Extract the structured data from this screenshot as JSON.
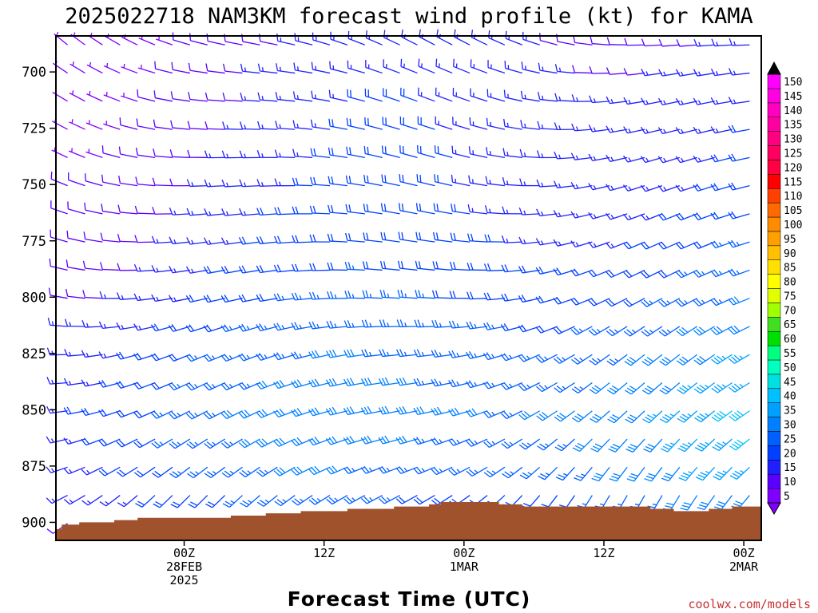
{
  "chart_data": {
    "type": "wind-profile",
    "title": "2025022718 NAM3KM forecast wind profile (kt) for KAMA",
    "xlabel": "Forecast Time (UTC)",
    "credit": "coolwx.com/models",
    "y_axis": {
      "label": "",
      "inverted": true,
      "range_hpa": [
        684,
        908
      ],
      "ticks": [
        "700",
        "725",
        "750",
        "775",
        "800",
        "825",
        "850",
        "875",
        "900"
      ]
    },
    "x_axis": {
      "range_hours_after_start": [
        -5,
        55.5
      ],
      "start": "2025022718",
      "ticks": [
        {
          "hour": 6,
          "lines": [
            "00Z",
            "28FEB",
            "2025"
          ]
        },
        {
          "hour": 18,
          "lines": [
            "12Z"
          ]
        },
        {
          "hour": 30,
          "lines": [
            "00Z",
            "1MAR"
          ]
        },
        {
          "hour": 42,
          "lines": [
            "12Z"
          ]
        },
        {
          "hour": 54,
          "lines": [
            "00Z",
            "2MAR"
          ]
        }
      ]
    },
    "colorbar": {
      "units": "kt",
      "levels": [
        "5",
        "10",
        "15",
        "20",
        "25",
        "30",
        "35",
        "40",
        "45",
        "50",
        "55",
        "60",
        "65",
        "70",
        "75",
        "80",
        "85",
        "90",
        "95",
        "100",
        "105",
        "110",
        "115",
        "120",
        "125",
        "130",
        "135",
        "140",
        "145",
        "150"
      ],
      "colors": [
        "#8000ff",
        "#5a00ff",
        "#2020ff",
        "#0040ff",
        "#0060ff",
        "#0080ff",
        "#00a0ff",
        "#00c0ff",
        "#00e0e0",
        "#00ffc0",
        "#00ff80",
        "#00e000",
        "#40e020",
        "#a0ff00",
        "#e0ff00",
        "#ffff00",
        "#ffe000",
        "#ffc000",
        "#ffa000",
        "#ff8c00",
        "#ff6a00",
        "#ff4000",
        "#ff0000",
        "#ff0040",
        "#ff0060",
        "#ff0080",
        "#ff00a0",
        "#ff00c0",
        "#ff00e0",
        "#ff00ff"
      ]
    },
    "wind_layers": [
      {
        "p": 690,
        "dir": 300,
        "spd": 12
      },
      {
        "p": 700,
        "dir": 295,
        "spd": 13
      },
      {
        "p": 725,
        "dir": 290,
        "spd": 14
      },
      {
        "p": 750,
        "dir": 285,
        "spd": 15
      },
      {
        "p": 775,
        "dir": 280,
        "spd": 17
      },
      {
        "p": 800,
        "dir": 275,
        "spd": 20
      },
      {
        "p": 825,
        "dir": 265,
        "spd": 24
      },
      {
        "p": 850,
        "dir": 260,
        "spd": 27
      },
      {
        "p": 875,
        "dir": 250,
        "spd": 25
      },
      {
        "p": 900,
        "dir": 235,
        "spd": 18
      }
    ],
    "terrain_surface": [
      {
        "hour": -5.0,
        "p": 903
      },
      {
        "hour": -4.5,
        "p": 901
      },
      {
        "hour": -3.0,
        "p": 900
      },
      {
        "hour": 0.0,
        "p": 899
      },
      {
        "hour": 2.0,
        "p": 898
      },
      {
        "hour": 10.0,
        "p": 897
      },
      {
        "hour": 13.0,
        "p": 896
      },
      {
        "hour": 16.0,
        "p": 895
      },
      {
        "hour": 20.0,
        "p": 894
      },
      {
        "hour": 24.0,
        "p": 893
      },
      {
        "hour": 27.0,
        "p": 892
      },
      {
        "hour": 28.0,
        "p": 891
      },
      {
        "hour": 32.0,
        "p": 891
      },
      {
        "hour": 33.0,
        "p": 892
      },
      {
        "hour": 35.0,
        "p": 893
      },
      {
        "hour": 46.0,
        "p": 894
      },
      {
        "hour": 48.0,
        "p": 895
      },
      {
        "hour": 51.0,
        "p": 894
      },
      {
        "hour": 53.0,
        "p": 893
      },
      {
        "hour": 55.5,
        "p": 893
      }
    ],
    "terrain_color": "#a0522d"
  }
}
